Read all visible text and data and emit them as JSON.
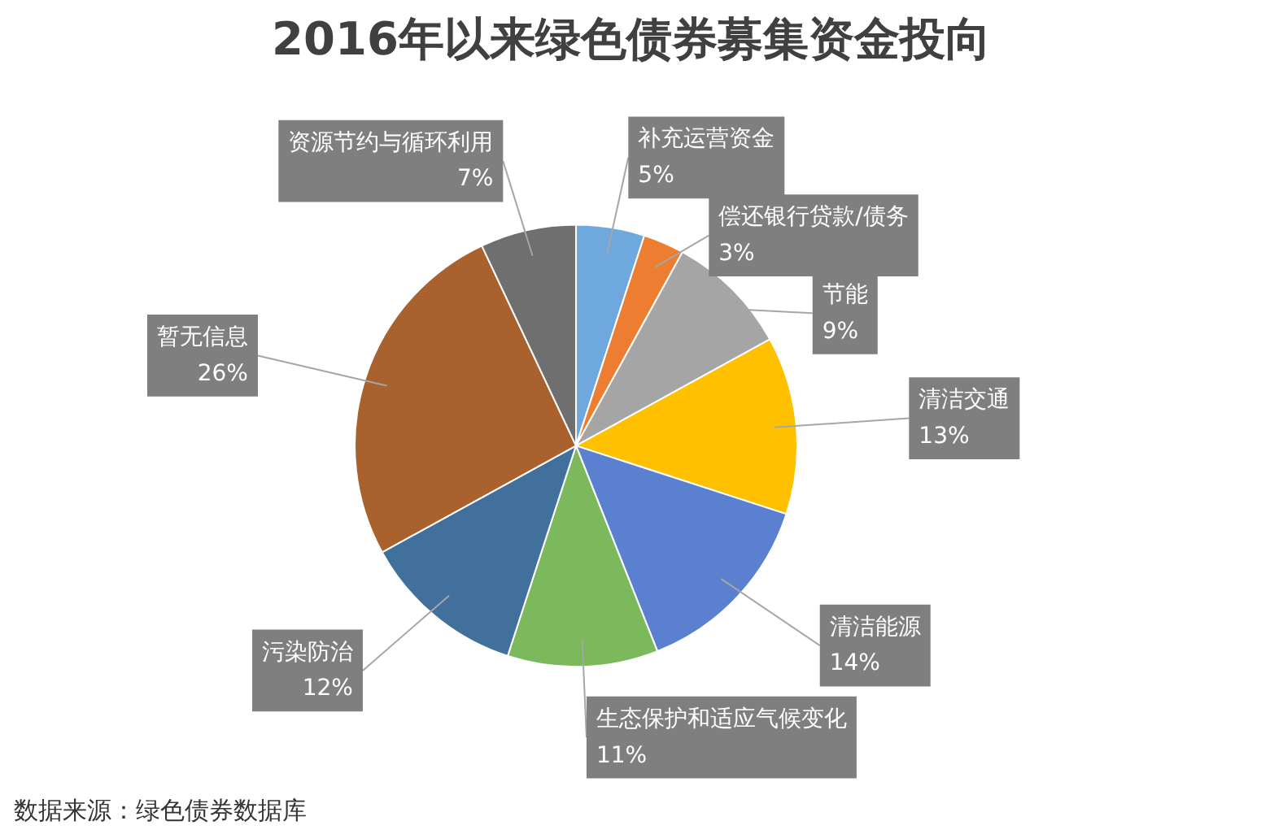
{
  "chart_data": {
    "type": "pie",
    "title": "2016年以来绿色债券募集资金投向",
    "categories": [
      "补充运营资金",
      "偿还银行贷款/债务",
      "节能",
      "清洁交通",
      "清洁能源",
      "生态保护和适应气候变化",
      "污染防治",
      "暂无信息",
      "资源节约与循环利用"
    ],
    "values": [
      5,
      3,
      9,
      13,
      14,
      11,
      12,
      26,
      7
    ],
    "value_labels": [
      "5%",
      "3%",
      "9%",
      "13%",
      "14%",
      "11%",
      "12%",
      "26%",
      "7%"
    ],
    "colors": [
      "#6fa8dc",
      "#ed7d31",
      "#a5a5a5",
      "#ffc000",
      "#5b80cf",
      "#7cb95c",
      "#41709c",
      "#a9622e",
      "#6f6f6f"
    ],
    "annotations": [
      "数据来源：绿色债券数据库"
    ]
  }
}
